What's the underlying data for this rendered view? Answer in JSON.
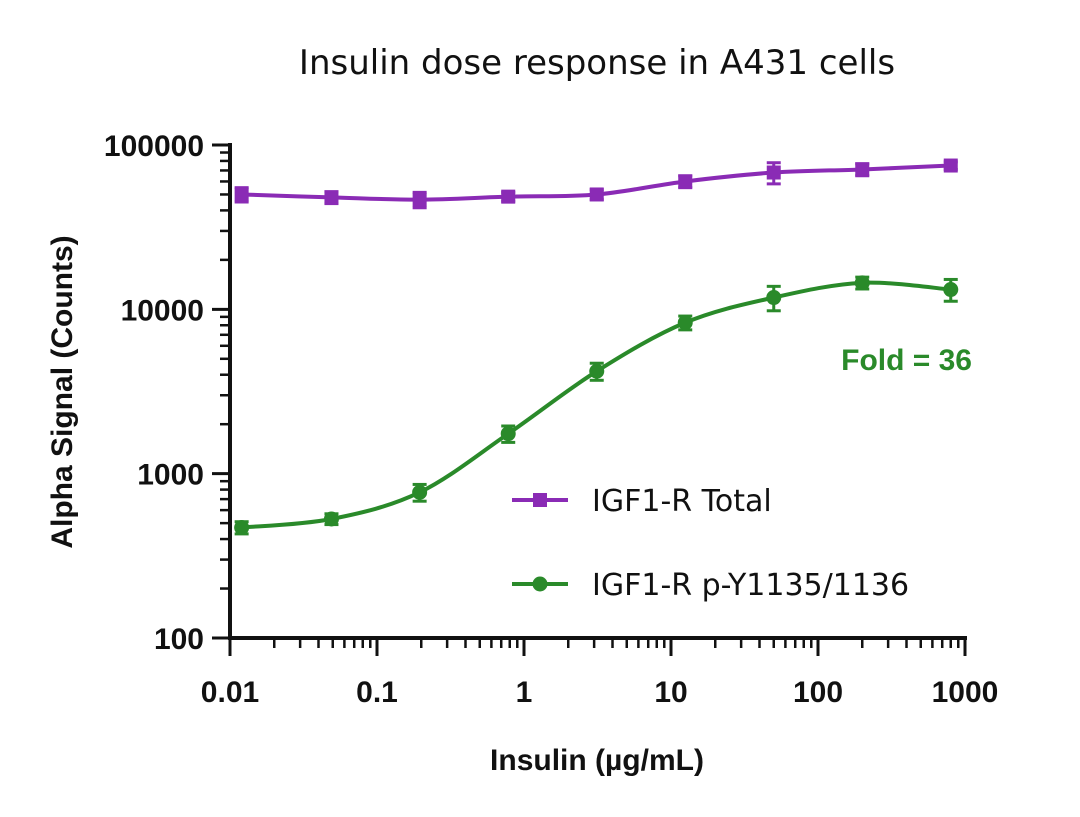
{
  "chart_data": {
    "type": "line",
    "title": "Insulin dose response in A431 cells",
    "xlabel": "Insulin (µg/mL)",
    "ylabel": "Alpha Signal (Counts)",
    "x_scale": "log",
    "y_scale": "log",
    "xlim": [
      0.01,
      1000
    ],
    "ylim": [
      100,
      100000
    ],
    "x_ticks": [
      "0.01",
      "0.1",
      "1",
      "10",
      "100",
      "1000"
    ],
    "y_ticks": [
      "100",
      "1000",
      "10000",
      "100000"
    ],
    "grid": false,
    "legend_position": "center-right",
    "series": [
      {
        "name": "IGF1-R Total",
        "color": "#8a2bb5",
        "marker": "square",
        "x": [
          0.012,
          0.049,
          0.195,
          0.781,
          3.125,
          12.5,
          50,
          200,
          800
        ],
        "y": [
          50000,
          48000,
          46500,
          48500,
          50000,
          60000,
          68000,
          71000,
          75000
        ],
        "error": [
          5000,
          4000,
          5000,
          3000,
          3500,
          5000,
          10000,
          6000,
          4000
        ]
      },
      {
        "name": "IGF1-R p-Y1135/1136",
        "color": "#2a8a2a",
        "marker": "circle",
        "x": [
          0.012,
          0.049,
          0.195,
          0.781,
          3.125,
          12.5,
          50,
          200,
          800
        ],
        "y": [
          470,
          530,
          770,
          1750,
          4200,
          8300,
          11800,
          14500,
          13200
        ],
        "error": [
          40,
          40,
          90,
          200,
          500,
          800,
          2000,
          1200,
          2000
        ]
      }
    ],
    "annotations": [
      {
        "text": "Fold = 36",
        "color": "#2a8a2a"
      }
    ]
  }
}
